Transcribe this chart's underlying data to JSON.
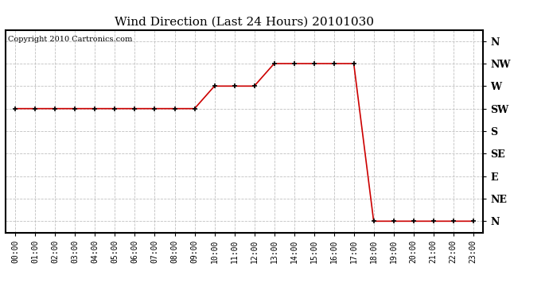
{
  "title": "Wind Direction (Last 24 Hours) 20101030",
  "copyright_text": "Copyright 2010 Cartronics.com",
  "line_color": "#cc0000",
  "bg_color": "#ffffff",
  "grid_color": "#c0c0c0",
  "marker": "+",
  "marker_color": "#000000",
  "hours": [
    0,
    1,
    2,
    3,
    4,
    5,
    6,
    7,
    8,
    9,
    10,
    11,
    12,
    13,
    14,
    15,
    16,
    17,
    18,
    19,
    20,
    21,
    22,
    23
  ],
  "y_values": [
    5,
    5,
    5,
    5,
    5,
    5,
    5,
    5,
    5,
    5,
    6,
    6,
    6,
    7,
    7,
    7,
    7,
    7,
    0,
    0,
    0,
    0,
    0,
    0
  ],
  "ytick_labels": [
    "N",
    "NE",
    "E",
    "SE",
    "S",
    "SW",
    "W",
    "NW",
    "N"
  ],
  "ytick_values": [
    0,
    1,
    2,
    3,
    4,
    5,
    6,
    7,
    8
  ],
  "title_fontsize": 11,
  "copyright_fontsize": 7,
  "tick_fontsize": 7,
  "ytick_fontsize": 9
}
